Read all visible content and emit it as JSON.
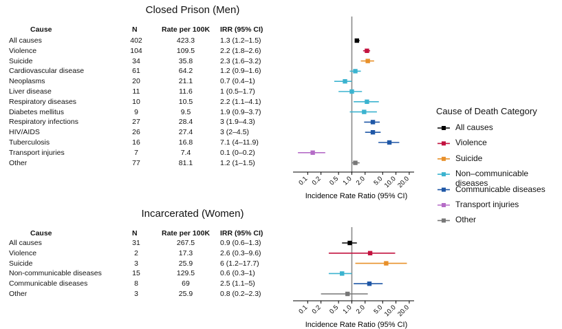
{
  "table_headers": {
    "cause": "Cause",
    "n": "N",
    "rate": "Rate per 100K",
    "irr": "IRR (95% CI)"
  },
  "legend": {
    "title": "Cause of Death Category",
    "items": [
      {
        "label": "All causes",
        "color": "#000000"
      },
      {
        "label": "Violence",
        "color": "#c2123f"
      },
      {
        "label": "Suicide",
        "color": "#e8902a"
      },
      {
        "label": "Non–communicable diseases",
        "color": "#3bb3cf"
      },
      {
        "label": "Communicable diseases",
        "color": "#1f57a6"
      },
      {
        "label": "Transport injuries",
        "color": "#b56cc7"
      },
      {
        "label": "Other",
        "color": "#777777"
      }
    ]
  },
  "chart_data": [
    {
      "type": "forest",
      "title": "Closed Prison (Men)",
      "xlabel": "Incidence Rate Ratio (95% CI)",
      "xscale": "log",
      "ticks": [
        "0.1",
        "0.2",
        "0.5",
        "1.0",
        "2.0",
        "5.0",
        "10.0",
        "20.0"
      ],
      "rows": [
        {
          "cause": "All causes",
          "n": "402",
          "rate": "423.3",
          "irr_text": "1.3 (1.2–1.5)",
          "irr": 1.3,
          "lo": 1.2,
          "hi": 1.5,
          "category": 0
        },
        {
          "cause": "Violence",
          "n": "104",
          "rate": "109.5",
          "irr_text": "2.2 (1.8–2.6)",
          "irr": 2.2,
          "lo": 1.8,
          "hi": 2.6,
          "category": 1
        },
        {
          "cause": "Suicide",
          "n": "34",
          "rate": "35.8",
          "irr_text": "2.3 (1.6–3.2)",
          "irr": 2.3,
          "lo": 1.6,
          "hi": 3.2,
          "category": 2
        },
        {
          "cause": "Cardiovascular disease",
          "n": "61",
          "rate": "64.2",
          "irr_text": "1.2 (0.9–1.6)",
          "irr": 1.2,
          "lo": 0.9,
          "hi": 1.6,
          "category": 3
        },
        {
          "cause": "Neoplasms",
          "n": "20",
          "rate": "21.1",
          "irr_text": "0.7 (0.4–1)",
          "irr": 0.7,
          "lo": 0.4,
          "hi": 1.0,
          "category": 3
        },
        {
          "cause": "Liver disease",
          "n": "11",
          "rate": "11.6",
          "irr_text": "1 (0.5–1.7)",
          "irr": 1.0,
          "lo": 0.5,
          "hi": 1.7,
          "category": 3
        },
        {
          "cause": "Respiratory diseases",
          "n": "10",
          "rate": "10.5",
          "irr_text": "2.2 (1.1–4.1)",
          "irr": 2.2,
          "lo": 1.1,
          "hi": 4.1,
          "category": 3
        },
        {
          "cause": "Diabetes mellitus",
          "n": "9",
          "rate": "9.5",
          "irr_text": "1.9 (0.9–3.7)",
          "irr": 1.9,
          "lo": 0.9,
          "hi": 3.7,
          "category": 3
        },
        {
          "cause": "Respiratory infections",
          "n": "27",
          "rate": "28.4",
          "irr_text": "3 (1.9–4.3)",
          "irr": 3.0,
          "lo": 1.9,
          "hi": 4.3,
          "category": 4
        },
        {
          "cause": "HIV/AIDS",
          "n": "26",
          "rate": "27.4",
          "irr_text": "3 (2–4.5)",
          "irr": 3.0,
          "lo": 2.0,
          "hi": 4.5,
          "category": 4
        },
        {
          "cause": "Tuberculosis",
          "n": "16",
          "rate": "16.8",
          "irr_text": "7.1 (4–11.9)",
          "irr": 7.1,
          "lo": 4.0,
          "hi": 11.9,
          "category": 4
        },
        {
          "cause": "Transport injuries",
          "n": "7",
          "rate": "7.4",
          "irr_text": "0.1 (0–0.2)",
          "irr": 0.13,
          "lo": 0.06,
          "hi": 0.25,
          "category": 5
        },
        {
          "cause": "Other",
          "n": "77",
          "rate": "81.1",
          "irr_text": "1.2 (1–1.5)",
          "irr": 1.2,
          "lo": 1.0,
          "hi": 1.5,
          "category": 6
        }
      ]
    },
    {
      "type": "forest",
      "title": "Incarcerated (Women)",
      "xlabel": "Incidence Rate Ratio (95% CI)",
      "xscale": "log",
      "ticks": [
        "0.1",
        "0.2",
        "0.5",
        "1.0",
        "2.0",
        "5.0",
        "10.0",
        "20.0"
      ],
      "rows": [
        {
          "cause": "All causes",
          "n": "31",
          "rate": "267.5",
          "irr_text": "0.9 (0.6–1.3)",
          "irr": 0.9,
          "lo": 0.6,
          "hi": 1.3,
          "category": 0
        },
        {
          "cause": "Violence",
          "n": "2",
          "rate": "17.3",
          "irr_text": "2.6 (0.3–9.6)",
          "irr": 2.6,
          "lo": 0.3,
          "hi": 9.6,
          "category": 1
        },
        {
          "cause": "Suicide",
          "n": "3",
          "rate": "25.9",
          "irr_text": "6 (1.2–17.7)",
          "irr": 6.0,
          "lo": 1.2,
          "hi": 17.7,
          "category": 2
        },
        {
          "cause": "Non-communicable diseases",
          "n": "15",
          "rate": "129.5",
          "irr_text": "0.6 (0.3–1)",
          "irr": 0.6,
          "lo": 0.3,
          "hi": 1.0,
          "category": 3
        },
        {
          "cause": "Communicable diseases",
          "n": "8",
          "rate": "69",
          "irr_text": "2.5 (1.1–5)",
          "irr": 2.5,
          "lo": 1.1,
          "hi": 5.0,
          "category": 4
        },
        {
          "cause": "Other",
          "n": "3",
          "rate": "25.9",
          "irr_text": "0.8 (0.2–2.3)",
          "irr": 0.8,
          "lo": 0.2,
          "hi": 2.3,
          "category": 6
        }
      ]
    }
  ]
}
